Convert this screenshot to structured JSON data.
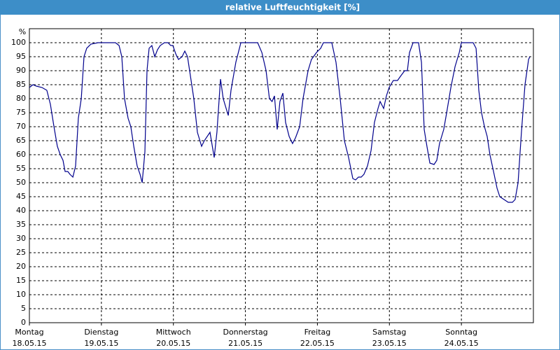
{
  "chart_data": {
    "type": "line",
    "title": "relative Luftfeuchtigkeit [%]",
    "y_unit": "%",
    "xlim": [
      0,
      168
    ],
    "xticks": [
      {
        "value": 0,
        "label": "Montag",
        "date": "18.05.15"
      },
      {
        "value": 24,
        "label": "Dienstag",
        "date": "19.05.15"
      },
      {
        "value": 48,
        "label": "Mittwoch",
        "date": "20.05.15"
      },
      {
        "value": 72,
        "label": "Donnerstag",
        "date": "21.05.15"
      },
      {
        "value": 96,
        "label": "Freitag",
        "date": "22.05.15"
      },
      {
        "value": 120,
        "label": "Samstag",
        "date": "23.05.15"
      },
      {
        "value": 144,
        "label": "Sonntag",
        "date": "24.05.15"
      }
    ],
    "ylim": [
      0,
      105
    ],
    "yticks": [
      0,
      5,
      10,
      15,
      20,
      25,
      30,
      35,
      40,
      45,
      50,
      55,
      60,
      65,
      70,
      75,
      80,
      85,
      90,
      95,
      100
    ],
    "grid": true,
    "series": [
      {
        "color": "#00008c",
        "x": [
          0,
          1.2,
          2.3,
          4.2,
          5.8,
          7,
          8.2,
          9.3,
          10.3,
          11.2,
          11.9,
          12.8,
          13.5,
          14.5,
          15.4,
          16.3,
          17.3,
          18.2,
          19.1,
          20.5,
          22.9,
          25.2,
          27.5,
          28.7,
          29.9,
          30.8,
          31.7,
          32.9,
          33.8,
          34.8,
          35.9,
          36.9,
          37.6,
          38.5,
          39.2,
          39.9,
          40.8,
          41.8,
          42.7,
          43.6,
          45,
          46.2,
          47.1,
          47.8,
          48.8,
          49.7,
          50.9,
          51.8,
          52.7,
          53.7,
          54.8,
          56,
          57.4,
          58.3,
          60.2,
          61.6,
          62.5,
          63.7,
          64.6,
          66.3,
          67.2,
          68.8,
          70.5,
          71.9,
          74.2,
          76.1,
          77.5,
          78.9,
          80,
          80.9,
          81.7,
          82.6,
          83.5,
          84.5,
          85.4,
          86.6,
          87.7,
          88.7,
          90.1,
          91.2,
          92.9,
          94,
          95.7,
          97.1,
          98,
          99.9,
          100.8,
          102.2,
          103.6,
          105,
          106.4,
          107.8,
          108.7,
          109.7,
          110.6,
          111.5,
          112.7,
          113.9,
          115,
          116.2,
          116.9,
          118.1,
          119,
          119.9,
          121.3,
          122.7,
          123.7,
          125.1,
          126,
          126.7,
          127.9,
          129.7,
          130.7,
          131.6,
          132.5,
          133.5,
          134.9,
          135.8,
          136.7,
          138.1,
          139.1,
          140.5,
          141.9,
          143.3,
          144,
          146.5,
          147.9,
          148.9,
          149.8,
          150.7,
          151.7,
          152.6,
          153.5,
          154.9,
          155.9,
          156.8,
          158.2,
          159.6,
          161,
          161.9,
          162.9,
          164,
          165.2,
          166.4,
          166.8
        ],
        "values": [
          84,
          85,
          84.5,
          84,
          83,
          78,
          70,
          63,
          60,
          58,
          54,
          54,
          53,
          52,
          56,
          73,
          80,
          95,
          98,
          99.5,
          100,
          100,
          100,
          100,
          99,
          95,
          80,
          73,
          70,
          63,
          56,
          53,
          50,
          61,
          90,
          98,
          99,
          95,
          97.5,
          99,
          100,
          100,
          99,
          99,
          96,
          94,
          95,
          97,
          95,
          88,
          80,
          68,
          63,
          65,
          68,
          59,
          68,
          87,
          80,
          74,
          83,
          93,
          100,
          100,
          100,
          100,
          96.5,
          90,
          80,
          79,
          81,
          69,
          79,
          82,
          71.5,
          66.5,
          64,
          66,
          70,
          80,
          90,
          94,
          96.5,
          98,
          100,
          100,
          100,
          93,
          80,
          65,
          59,
          51.5,
          51,
          52,
          52,
          53,
          56,
          61.5,
          71.5,
          76.5,
          79,
          76.5,
          81,
          84,
          86.5,
          86.5,
          88,
          90,
          90,
          96.5,
          100,
          100,
          93,
          69,
          63,
          57,
          56.5,
          58,
          64,
          69,
          75,
          84,
          91.5,
          96.5,
          100,
          100,
          100,
          98,
          83,
          75,
          70,
          66.5,
          60,
          53,
          48,
          45,
          44,
          43,
          43,
          44,
          50,
          68,
          85,
          94,
          95
        ]
      }
    ]
  }
}
